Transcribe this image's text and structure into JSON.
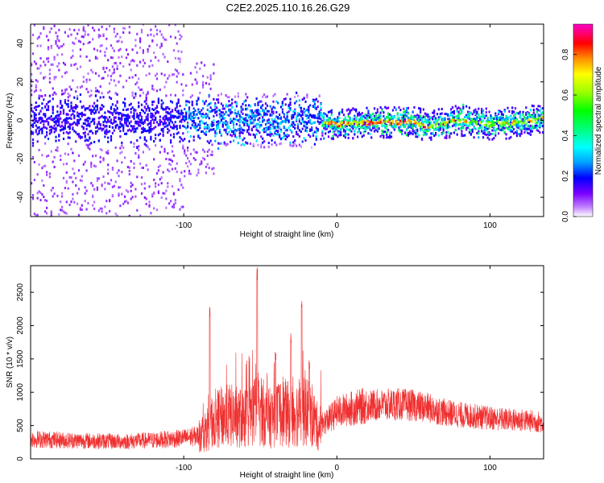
{
  "figure": {
    "title": "C2E2.2025.110.16.26.G29"
  },
  "chart_data": [
    {
      "type": "heatmap",
      "xlabel": "Height of straight line (km)",
      "ylabel": "Frequency (Hz)",
      "xlim": [
        -200,
        135
      ],
      "ylim": [
        -50,
        50
      ],
      "xticks": [
        -100,
        0,
        100
      ],
      "yticks": [
        -40,
        -20,
        0,
        20,
        40
      ],
      "grid": false,
      "colorbar": {
        "label": "Normalized spectral amplitude",
        "range": [
          0,
          0.95
        ],
        "ticks": [
          0,
          0.2,
          0.4,
          0.6,
          0.8
        ],
        "tick_labels": [
          "0.0",
          "0.2",
          "0.4",
          "0.6",
          "0.8"
        ],
        "colormap": [
          "#ffffff",
          "#c080ff",
          "#7a00ff",
          "#0000ff",
          "#00a0ff",
          "#00ffff",
          "#00ff80",
          "#00ff00",
          "#a0ff00",
          "#ffff00",
          "#ff9000",
          "#ff0000",
          "#ff0080",
          "#ff00c0"
        ]
      },
      "ridge": [
        {
          "x": -200,
          "f": 0
        },
        {
          "x": -150,
          "f": 0
        },
        {
          "x": -100,
          "f": 0
        },
        {
          "x": -80,
          "f": 0
        },
        {
          "x": -50,
          "f": 0
        },
        {
          "x": -20,
          "f": 0
        },
        {
          "x": -10,
          "f": -1
        },
        {
          "x": 0,
          "f": -2
        },
        {
          "x": 30,
          "f": -1
        },
        {
          "x": 50,
          "f": -1
        },
        {
          "x": 60,
          "f": -3
        },
        {
          "x": 80,
          "f": 0
        },
        {
          "x": 100,
          "f": -2
        },
        {
          "x": 120,
          "f": -1
        },
        {
          "x": 135,
          "f": 1
        }
      ]
    },
    {
      "type": "line",
      "xlabel": "Height of straight line (km)",
      "ylabel": "SNR (10 * v/v)",
      "xlim": [
        -200,
        135
      ],
      "ylim": [
        0,
        2900
      ],
      "xticks": [
        -100,
        0,
        100
      ],
      "yticks": [
        0,
        500,
        1000,
        1500,
        2000,
        2500
      ],
      "grid": false,
      "color": "#f03030",
      "series": [
        {
          "x": [
            -200,
            -180,
            -160,
            -140,
            -120,
            -100,
            -90,
            -85,
            -80,
            -70,
            -60,
            -55,
            -50,
            -45,
            -40,
            -35,
            -30,
            -25,
            -20,
            -15,
            -12,
            -8,
            -5,
            0,
            10,
            20,
            30,
            40,
            50,
            60,
            70,
            80,
            90,
            100,
            110,
            120,
            130,
            135
          ],
          "values": [
            300,
            280,
            270,
            260,
            280,
            310,
            350,
            450,
            600,
            650,
            600,
            700,
            750,
            600,
            650,
            700,
            650,
            700,
            700,
            600,
            450,
            550,
            600,
            700,
            760,
            800,
            810,
            820,
            800,
            760,
            700,
            660,
            640,
            610,
            590,
            580,
            560,
            540
          ]
        }
      ],
      "peaks": [
        {
          "x": -83,
          "value": 2280
        },
        {
          "x": -52,
          "value": 2900
        },
        {
          "x": -40,
          "value": 1650
        },
        {
          "x": -30,
          "value": 1900
        },
        {
          "x": -23,
          "value": 2470
        },
        {
          "x": -18,
          "value": 1500
        }
      ]
    }
  ]
}
